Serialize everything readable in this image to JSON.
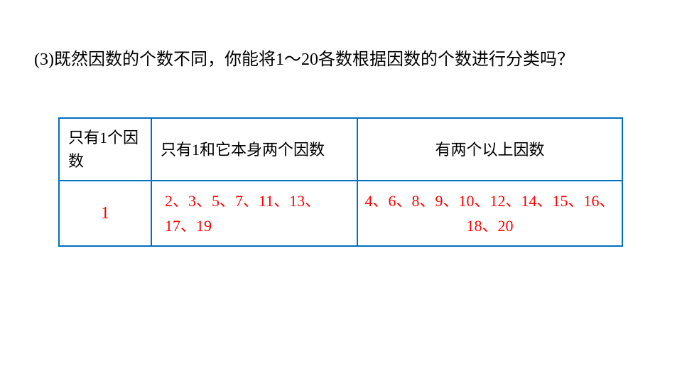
{
  "question": "(3)既然因数的个数不同，你能将1～20各数根据因数的个数进行分类吗？",
  "table": {
    "headers": {
      "col1": "只有1个因数",
      "col2": "只有1和它本身两个因数",
      "col3": "有两个以上因数"
    },
    "row": {
      "col1": "1",
      "col2": "2、3、5、7、11、13、17、19",
      "col3": "4、6、8、9、10、12、14、15、16、18、20"
    }
  },
  "styling": {
    "border_color": "#0070c0",
    "text_color": "#000000",
    "answer_color": "#ff0000",
    "background_color": "#ffffff",
    "question_fontsize": 24,
    "cell_fontsize": 22,
    "font_family": "KaiTi"
  }
}
